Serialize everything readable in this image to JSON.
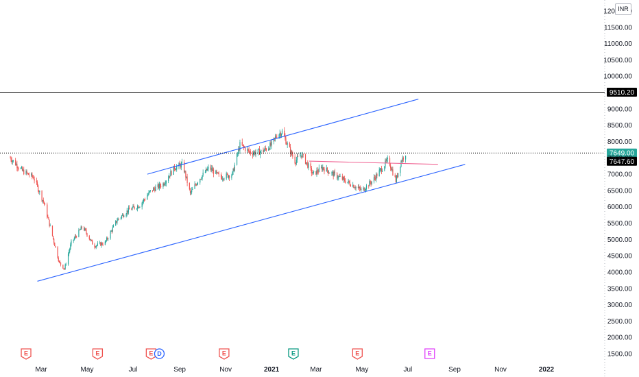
{
  "currency_label": "INR",
  "colors": {
    "up": "#26a69a",
    "down": "#ef5350",
    "trend": "#2962ff",
    "level": "#000000",
    "pink": "#f06292",
    "earnings": "#ef5350",
    "dividend": "#2962ff",
    "future_earnings": "#e040fb",
    "reported_earnings": "#089981"
  },
  "chart_data": {
    "type": "candlestick",
    "title": "",
    "xlabel": "",
    "ylabel": "",
    "x_ticks": [
      "Mar",
      "May",
      "Jul",
      "Sep",
      "Nov",
      "2021",
      "Mar",
      "May",
      "Jul",
      "Sep",
      "Nov",
      "2022"
    ],
    "y_ticks": [
      1500,
      2000,
      2500,
      3000,
      3500,
      4000,
      4500,
      5000,
      5500,
      6000,
      6500,
      7000,
      7500,
      8000,
      8500,
      9000,
      10000,
      10500,
      11000,
      11500
    ],
    "y_tick_labels": [
      "1500.00",
      "2000.00",
      "2500.00",
      "3000.00",
      "3500.00",
      "4000.00",
      "4500.00",
      "5000.00",
      "5500.00",
      "6000.00",
      "6500.00",
      "7000.00",
      "7500.00",
      "8000.00",
      "8500.00",
      "9000.00",
      "10000.00",
      "10500.00",
      "11000.00",
      "11500.00"
    ],
    "top_tick_label": "12000.00",
    "ylim": [
      1250,
      12100
    ],
    "price_path": [
      [
        "2020-01-20",
        7500
      ],
      [
        "2020-02-05",
        7100
      ],
      [
        "2020-02-20",
        6900
      ],
      [
        "2020-03-05",
        6100
      ],
      [
        "2020-03-15",
        5200
      ],
      [
        "2020-03-25",
        4300
      ],
      [
        "2020-04-01",
        4100
      ],
      [
        "2020-04-10",
        4900
      ],
      [
        "2020-04-25",
        5400
      ],
      [
        "2020-05-10",
        4800
      ],
      [
        "2020-05-25",
        4900
      ],
      [
        "2020-06-10",
        5600
      ],
      [
        "2020-06-25",
        5900
      ],
      [
        "2020-07-10",
        6050
      ],
      [
        "2020-07-25",
        6500
      ],
      [
        "2020-08-10",
        6700
      ],
      [
        "2020-08-25",
        7200
      ],
      [
        "2020-09-05",
        7300
      ],
      [
        "2020-09-15",
        6400
      ],
      [
        "2020-09-25",
        6800
      ],
      [
        "2020-10-10",
        7200
      ],
      [
        "2020-10-25",
        6900
      ],
      [
        "2020-11-10",
        7000
      ],
      [
        "2020-11-20",
        7900
      ],
      [
        "2020-12-05",
        7650
      ],
      [
        "2020-12-20",
        7700
      ],
      [
        "2021-01-01",
        7900
      ],
      [
        "2021-01-08",
        8200
      ],
      [
        "2021-01-15",
        8300
      ],
      [
        "2021-01-22",
        7900
      ],
      [
        "2021-02-01",
        7400
      ],
      [
        "2021-02-10",
        7600
      ],
      [
        "2021-02-25",
        7000
      ],
      [
        "2021-03-10",
        7200
      ],
      [
        "2021-03-20",
        7050
      ],
      [
        "2021-04-05",
        6850
      ],
      [
        "2021-04-20",
        6650
      ],
      [
        "2021-05-01",
        6500
      ],
      [
        "2021-05-15",
        6800
      ],
      [
        "2021-05-25",
        7100
      ],
      [
        "2021-06-05",
        7450
      ],
      [
        "2021-06-15",
        6800
      ],
      [
        "2021-06-22",
        7400
      ],
      [
        "2021-06-28",
        7647.6
      ]
    ],
    "last_close": 7647.6,
    "lines": [
      {
        "kind": "channel-lower",
        "from": [
          "2020-02-25",
          3720
        ],
        "to": [
          "2021-09-15",
          7300
        ]
      },
      {
        "kind": "channel-upper",
        "from": [
          "2020-07-20",
          7000
        ],
        "to": [
          "2021-07-15",
          9300
        ]
      },
      {
        "kind": "resistance",
        "from": [
          "2021-02-20",
          7400
        ],
        "to": [
          "2021-08-10",
          7300
        ]
      },
      {
        "kind": "horizontal",
        "y": 9510.2,
        "label": "9510.20"
      },
      {
        "kind": "horizontal-dotted",
        "y": 7649.0,
        "label": "7649.00"
      }
    ],
    "price_tags": [
      {
        "y": 9510.2,
        "label": "9510.20",
        "color": "#000000"
      },
      {
        "y": 7649.0,
        "label": "7649.00",
        "color": "#26a69a"
      },
      {
        "y": 7647.6,
        "label": "7647.60",
        "color": "#000000"
      }
    ],
    "events": [
      {
        "date": "2020-02-10",
        "kind": "earnings",
        "label": "E"
      },
      {
        "date": "2020-05-15",
        "kind": "earnings",
        "label": "E"
      },
      {
        "date": "2020-07-25",
        "kind": "earnings",
        "label": "E"
      },
      {
        "date": "2020-08-05",
        "kind": "dividend",
        "label": "D"
      },
      {
        "date": "2020-10-30",
        "kind": "earnings",
        "label": "E"
      },
      {
        "date": "2021-01-30",
        "kind": "reported_earnings",
        "label": "E"
      },
      {
        "date": "2021-04-25",
        "kind": "earnings",
        "label": "E"
      },
      {
        "date": "2021-07-30",
        "kind": "future_earnings",
        "label": "E"
      }
    ]
  }
}
